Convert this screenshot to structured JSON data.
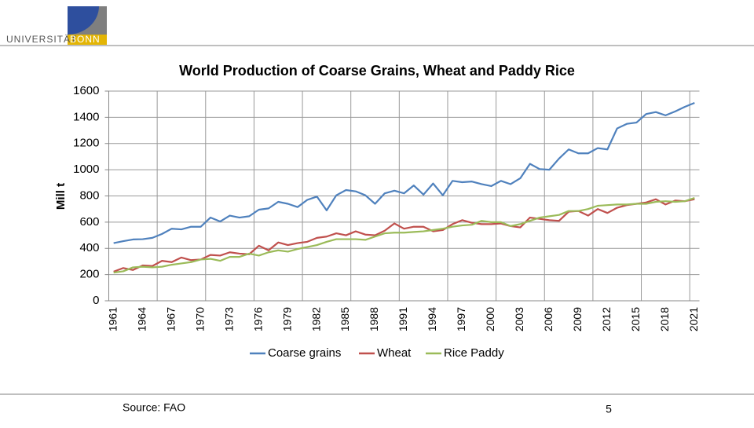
{
  "slide": {
    "logo_text": "UNIVERSITÄT",
    "logo_highlight": "BONN",
    "source": "Source: FAO",
    "page_number": "5"
  },
  "chart_data": {
    "type": "line",
    "title": "World Production of Coarse Grains, Wheat and Paddy Rice",
    "y_label": "Mill t",
    "categories": [
      "1961",
      null,
      null,
      "1964",
      null,
      null,
      "1967",
      null,
      null,
      "1970",
      null,
      null,
      "1973",
      null,
      null,
      "1976",
      null,
      null,
      "1979",
      null,
      null,
      "1982",
      null,
      null,
      "1985",
      null,
      null,
      "1988",
      null,
      null,
      "1991",
      null,
      null,
      "1994",
      null,
      null,
      "1997",
      null,
      null,
      "2000",
      null,
      null,
      "2003",
      null,
      null,
      "2006",
      null,
      null,
      "2009",
      null,
      null,
      "2012",
      null,
      null,
      "2015",
      null,
      null,
      "2018",
      null,
      null,
      "2021"
    ],
    "series": [
      {
        "name": "Coarse grains",
        "color": "#4f81bd",
        "values": [
          440,
          455,
          468,
          470,
          480,
          510,
          550,
          545,
          565,
          565,
          635,
          605,
          650,
          635,
          645,
          695,
          705,
          755,
          740,
          715,
          770,
          795,
          690,
          805,
          845,
          835,
          805,
          740,
          820,
          840,
          820,
          880,
          810,
          895,
          805,
          915,
          905,
          910,
          890,
          875,
          915,
          890,
          935,
          1045,
          1005,
          1000,
          1085,
          1155,
          1125,
          1125,
          1165,
          1155,
          1315,
          1350,
          1360,
          1425,
          1440,
          1415,
          1445,
          1480,
          1510
        ]
      },
      {
        "name": "Wheat",
        "color": "#c0504d",
        "values": [
          222,
          250,
          235,
          270,
          265,
          305,
          295,
          330,
          310,
          315,
          350,
          345,
          370,
          360,
          355,
          420,
          385,
          445,
          425,
          440,
          450,
          480,
          490,
          515,
          500,
          530,
          505,
          500,
          535,
          590,
          550,
          565,
          565,
          530,
          540,
          585,
          615,
          595,
          585,
          585,
          590,
          570,
          560,
          635,
          625,
          615,
          610,
          680,
          685,
          650,
          700,
          670,
          710,
          730,
          740,
          750,
          775,
          735,
          765,
          760,
          775
        ]
      },
      {
        "name": "Rice Paddy",
        "color": "#9bbb59",
        "values": [
          215,
          225,
          255,
          260,
          255,
          260,
          275,
          285,
          295,
          315,
          320,
          305,
          335,
          335,
          360,
          345,
          370,
          385,
          375,
          395,
          410,
          425,
          450,
          470,
          470,
          470,
          465,
          490,
          515,
          520,
          520,
          525,
          530,
          540,
          550,
          565,
          575,
          580,
          610,
          600,
          600,
          570,
          585,
          610,
          635,
          645,
          655,
          685,
          685,
          700,
          725,
          730,
          735,
          735,
          740,
          740,
          755,
          760,
          755,
          760,
          785
        ]
      }
    ],
    "ylim": [
      0,
      1600
    ],
    "yticks": [
      0,
      200,
      400,
      600,
      800,
      1000,
      1200,
      1400,
      1600
    ],
    "grid": true,
    "legend": "bottom"
  }
}
